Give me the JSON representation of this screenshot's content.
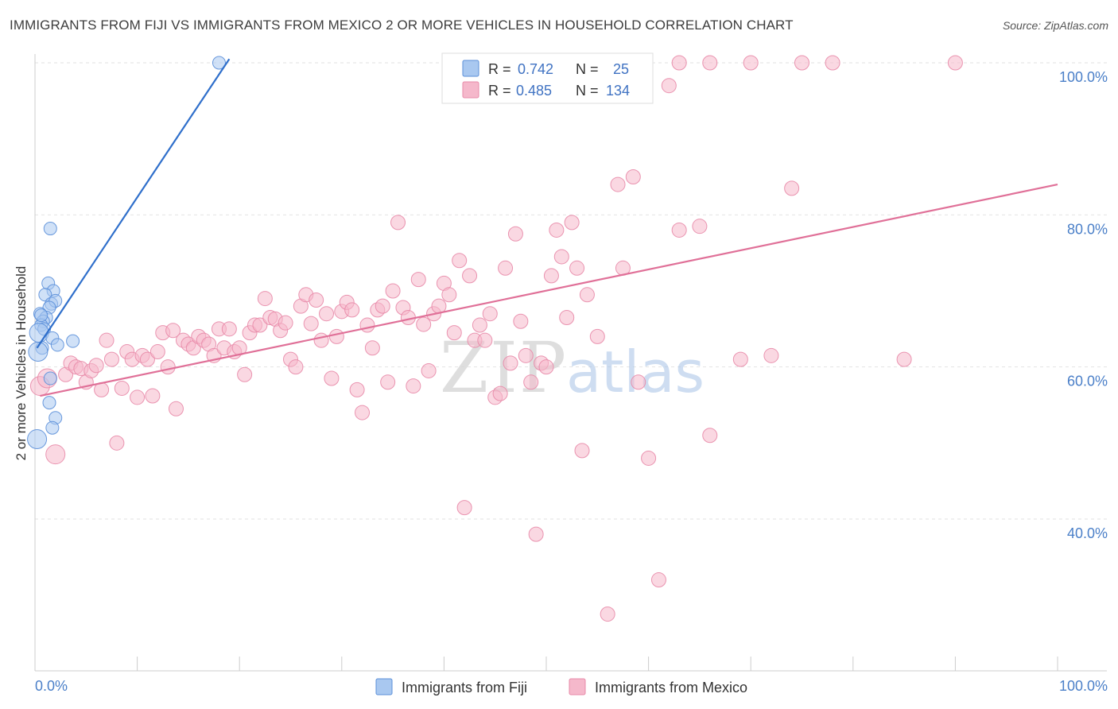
{
  "header": {
    "title": "IMMIGRANTS FROM FIJI VS IMMIGRANTS FROM MEXICO 2 OR MORE VEHICLES IN HOUSEHOLD CORRELATION CHART",
    "source": "Source: ZipAtlas.com"
  },
  "watermark": {
    "part1": "ZIP",
    "part2": "atlas"
  },
  "legend": {
    "r_label": "R =",
    "n_label": "N =",
    "rows": [
      {
        "r_value": "0.742",
        "n_value": "25",
        "color": "#a9c8f0"
      },
      {
        "r_value": "0.485",
        "n_value": "134",
        "color": "#f5b8cb"
      }
    ]
  },
  "bottom_legend": [
    {
      "label": "Immigrants from Fiji",
      "color": "#a9c8f0"
    },
    {
      "label": "Immigrants from Mexico",
      "color": "#f5b8cb"
    }
  ],
  "chart_data": {
    "type": "scatter",
    "title": "IMMIGRANTS FROM FIJI VS IMMIGRANTS FROM MEXICO 2 OR MORE VEHICLES IN HOUSEHOLD CORRELATION CHART",
    "xlabel": "",
    "ylabel": "2 or more Vehicles in Household",
    "xlim": [
      0,
      100
    ],
    "ylim": [
      20,
      101
    ],
    "x_tick_labels": [
      {
        "value": 0,
        "label": "0.0%"
      },
      {
        "value": 100,
        "label": "100.0%"
      }
    ],
    "y_tick_labels": [
      {
        "value": 40,
        "label": "40.0%"
      },
      {
        "value": 60,
        "label": "60.0%"
      },
      {
        "value": 80,
        "label": "80.0%"
      },
      {
        "value": 100,
        "label": "100.0%"
      }
    ],
    "grid": true,
    "legend_position": "top-center",
    "series": [
      {
        "name": "Immigrants from Fiji",
        "color": "#5b8fd9",
        "fill": "#a9c8f0",
        "trend": {
          "x": [
            0.2,
            19
          ],
          "y": [
            62.5,
            100.5
          ],
          "color": "#2f6fcb"
        },
        "points": [
          [
            18.0,
            100.0
          ],
          [
            1.5,
            78.2
          ],
          [
            1.3,
            71.0
          ],
          [
            1.8,
            70.0
          ],
          [
            1.0,
            69.5
          ],
          [
            1.6,
            68.3
          ],
          [
            2.0,
            68.7
          ],
          [
            1.4,
            67.8
          ],
          [
            0.5,
            67.0
          ],
          [
            1.1,
            66.5
          ],
          [
            0.8,
            66.0
          ],
          [
            0.6,
            65.5
          ],
          [
            0.9,
            65.0
          ],
          [
            0.4,
            64.5
          ],
          [
            1.7,
            63.8
          ],
          [
            3.7,
            63.4
          ],
          [
            0.7,
            62.5
          ],
          [
            2.2,
            62.9
          ],
          [
            0.3,
            62.0
          ],
          [
            1.5,
            58.5
          ],
          [
            1.4,
            55.3
          ],
          [
            2.0,
            53.3
          ],
          [
            1.7,
            52.0
          ],
          [
            0.2,
            50.5
          ],
          [
            0.6,
            66.8
          ]
        ]
      },
      {
        "name": "Immigrants from Mexico",
        "color": "#e88aa8",
        "fill": "#f5b8cb",
        "trend": {
          "x": [
            0.5,
            100
          ],
          "y": [
            56.2,
            84.0
          ],
          "color": "#e07098"
        },
        "points": [
          [
            0.5,
            57.5
          ],
          [
            1.2,
            58.5
          ],
          [
            2.0,
            48.5
          ],
          [
            3.0,
            59.0
          ],
          [
            3.5,
            60.5
          ],
          [
            4.0,
            60.0
          ],
          [
            4.5,
            59.8
          ],
          [
            5.0,
            58.0
          ],
          [
            5.5,
            59.5
          ],
          [
            6.0,
            60.2
          ],
          [
            6.5,
            57.0
          ],
          [
            7.0,
            63.5
          ],
          [
            7.5,
            61.0
          ],
          [
            8.0,
            50.0
          ],
          [
            8.5,
            57.2
          ],
          [
            9.0,
            62.0
          ],
          [
            9.5,
            61.0
          ],
          [
            10.0,
            56.0
          ],
          [
            10.5,
            61.5
          ],
          [
            11.0,
            61.0
          ],
          [
            11.5,
            56.2
          ],
          [
            12.0,
            62.0
          ],
          [
            12.5,
            64.5
          ],
          [
            13.0,
            60.0
          ],
          [
            13.5,
            64.8
          ],
          [
            13.8,
            54.5
          ],
          [
            14.5,
            63.5
          ],
          [
            15.0,
            63.0
          ],
          [
            15.5,
            62.5
          ],
          [
            16.0,
            64.0
          ],
          [
            16.5,
            63.5
          ],
          [
            17.0,
            63.0
          ],
          [
            17.5,
            61.5
          ],
          [
            18.0,
            65.0
          ],
          [
            18.5,
            62.5
          ],
          [
            19.0,
            65.0
          ],
          [
            19.5,
            62.0
          ],
          [
            20.0,
            62.5
          ],
          [
            20.5,
            59.0
          ],
          [
            21.0,
            64.5
          ],
          [
            21.5,
            65.5
          ],
          [
            22.0,
            65.5
          ],
          [
            22.5,
            69.0
          ],
          [
            23.0,
            66.5
          ],
          [
            23.5,
            66.3
          ],
          [
            24.0,
            64.8
          ],
          [
            24.5,
            65.8
          ],
          [
            25.0,
            61.0
          ],
          [
            25.5,
            60.0
          ],
          [
            26.0,
            68.0
          ],
          [
            26.5,
            69.5
          ],
          [
            27.0,
            65.7
          ],
          [
            27.5,
            68.8
          ],
          [
            28.0,
            63.5
          ],
          [
            28.5,
            67.0
          ],
          [
            29.0,
            58.5
          ],
          [
            29.5,
            64.0
          ],
          [
            30.0,
            67.3
          ],
          [
            30.5,
            68.5
          ],
          [
            31.0,
            67.5
          ],
          [
            31.5,
            57.0
          ],
          [
            32.0,
            54.0
          ],
          [
            32.5,
            65.5
          ],
          [
            33.0,
            62.5
          ],
          [
            33.5,
            67.5
          ],
          [
            34.0,
            68.0
          ],
          [
            34.5,
            58.0
          ],
          [
            35.0,
            70.0
          ],
          [
            35.5,
            79.0
          ],
          [
            36.0,
            67.8
          ],
          [
            36.5,
            66.5
          ],
          [
            37.0,
            57.5
          ],
          [
            37.5,
            71.5
          ],
          [
            38.0,
            65.6
          ],
          [
            38.5,
            59.5
          ],
          [
            39.0,
            67.0
          ],
          [
            39.5,
            68.0
          ],
          [
            40.0,
            71.0
          ],
          [
            40.5,
            69.5
          ],
          [
            41.0,
            64.5
          ],
          [
            41.5,
            74.0
          ],
          [
            42.0,
            41.5
          ],
          [
            42.5,
            72.0
          ],
          [
            43.0,
            63.5
          ],
          [
            43.5,
            65.5
          ],
          [
            44.0,
            63.5
          ],
          [
            44.5,
            67.0
          ],
          [
            45.0,
            56.0
          ],
          [
            45.5,
            56.5
          ],
          [
            46.0,
            73.0
          ],
          [
            46.5,
            60.5
          ],
          [
            47.0,
            77.5
          ],
          [
            47.5,
            66.0
          ],
          [
            48.0,
            61.5
          ],
          [
            48.5,
            58.0
          ],
          [
            49.0,
            38.0
          ],
          [
            49.5,
            60.5
          ],
          [
            50.0,
            60.0
          ],
          [
            50.5,
            72.0
          ],
          [
            51.0,
            78.0
          ],
          [
            51.5,
            74.5
          ],
          [
            52.0,
            66.5
          ],
          [
            52.5,
            79.0
          ],
          [
            53.0,
            73.0
          ],
          [
            53.5,
            49.0
          ],
          [
            54.0,
            69.5
          ],
          [
            55.0,
            64.0
          ],
          [
            56.0,
            27.5
          ],
          [
            57.0,
            84.0
          ],
          [
            57.5,
            73.0
          ],
          [
            58.5,
            85.0
          ],
          [
            59.0,
            58.0
          ],
          [
            60.0,
            48.0
          ],
          [
            61.0,
            32.0
          ],
          [
            62.0,
            97.0
          ],
          [
            63.0,
            78.0
          ],
          [
            65.0,
            78.5
          ],
          [
            66.0,
            51.0
          ],
          [
            69.0,
            61.0
          ],
          [
            72.0,
            61.5
          ],
          [
            74.0,
            83.5
          ],
          [
            56.0,
            100.0
          ],
          [
            63.0,
            100.0
          ],
          [
            66.0,
            100.0
          ],
          [
            70.0,
            100.0
          ],
          [
            75.0,
            100.0
          ],
          [
            78.0,
            100.0
          ],
          [
            90.0,
            100.0
          ],
          [
            85.0,
            61.0
          ]
        ]
      }
    ]
  }
}
